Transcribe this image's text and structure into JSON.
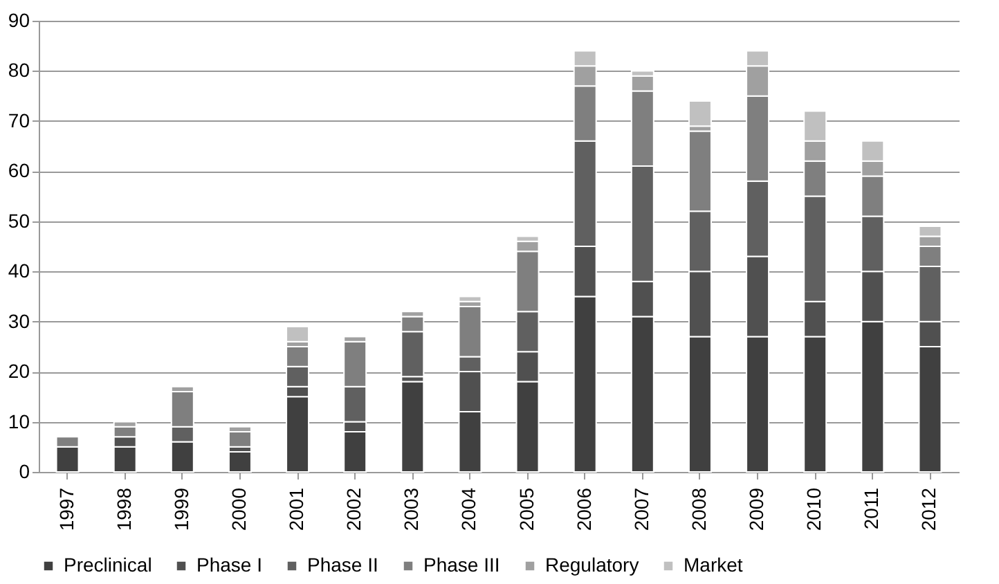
{
  "chart_data": {
    "type": "bar",
    "stacked": true,
    "categories": [
      "1997",
      "1998",
      "1999",
      "2000",
      "2001",
      "2002",
      "2003",
      "2004",
      "2005",
      "2006",
      "2007",
      "2008",
      "2009",
      "2010",
      "2011",
      "2012"
    ],
    "series": [
      {
        "name": "Preclinical",
        "color": "#404040",
        "values": [
          5,
          5,
          6,
          4,
          15,
          8,
          18,
          12,
          18,
          35,
          31,
          27,
          27,
          27,
          30,
          25
        ]
      },
      {
        "name": "Phase I",
        "color": "#505050",
        "values": [
          0,
          2,
          0,
          1,
          2,
          2,
          1,
          8,
          6,
          10,
          7,
          13,
          16,
          7,
          10,
          5
        ]
      },
      {
        "name": "Phase II",
        "color": "#606060",
        "values": [
          0,
          0,
          3,
          0,
          4,
          7,
          9,
          3,
          8,
          21,
          23,
          12,
          15,
          21,
          11,
          11
        ]
      },
      {
        "name": "Phase III",
        "color": "#7f7f7f",
        "values": [
          2,
          2,
          7,
          3,
          4,
          9,
          3,
          10,
          12,
          11,
          15,
          16,
          17,
          7,
          8,
          4
        ]
      },
      {
        "name": "Regulatory",
        "color": "#a0a0a0",
        "values": [
          0,
          1,
          1,
          1,
          1,
          1,
          1,
          1,
          2,
          4,
          3,
          1,
          6,
          4,
          3,
          2
        ]
      },
      {
        "name": "Market",
        "color": "#c0c0c0",
        "values": [
          0,
          0,
          0,
          0,
          3,
          0,
          0,
          1,
          1,
          3,
          1,
          5,
          3,
          6,
          4,
          2
        ]
      }
    ],
    "ylim": [
      0,
      90
    ],
    "yticks": [
      0,
      10,
      20,
      30,
      40,
      50,
      60,
      70,
      80,
      90
    ],
    "grid": "y",
    "legend": "bottom"
  }
}
